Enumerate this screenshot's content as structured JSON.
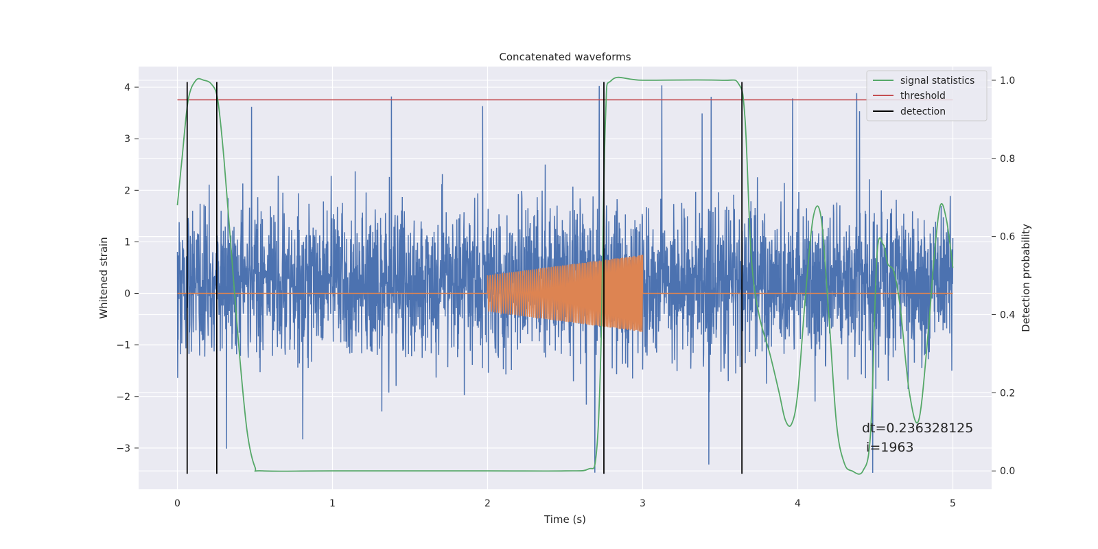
{
  "chart_data": {
    "type": "line",
    "title": "Concatenated waveforms",
    "xlabel": "Time (s)",
    "ylabel": "Whitened strain",
    "y2label": "Detection probability",
    "xlim": [
      -0.25,
      5.25
    ],
    "ylim": [
      -3.8,
      4.4
    ],
    "y2lim": [
      -0.047,
      1.035
    ],
    "xticks": [
      0,
      1,
      2,
      3,
      4,
      5
    ],
    "xtick_labels": [
      "0",
      "1",
      "2",
      "3",
      "4",
      "5"
    ],
    "yticks": [
      -3,
      -2,
      -1,
      0,
      1,
      2,
      3,
      4
    ],
    "ytick_labels": [
      "−3",
      "−2",
      "−1",
      "0",
      "1",
      "2",
      "3",
      "4"
    ],
    "y2ticks": [
      0.0,
      0.2,
      0.4,
      0.6,
      0.8,
      1.0
    ],
    "y2tick_labels": [
      "0.0",
      "0.2",
      "0.4",
      "0.6",
      "0.8",
      "1.0"
    ],
    "grid": true,
    "legend_position": "top-right",
    "series": [
      {
        "name": "",
        "axis": "left",
        "color": "#4c72b0",
        "kind": "noise",
        "x_range": [
          0,
          5
        ],
        "typical_amplitude": [
          -1.5,
          2.3
        ],
        "extremes": [
          -3.5,
          4.1
        ]
      },
      {
        "name": "",
        "axis": "left",
        "color": "#dd8452",
        "kind": "chirp",
        "x": [
          0,
          2,
          2,
          3,
          3,
          5
        ],
        "envelope": [
          0,
          0,
          0.35,
          0.75,
          0,
          0
        ]
      },
      {
        "name": "signal statistics",
        "axis": "right",
        "color": "#55a868",
        "x": [
          0.0,
          0.03,
          0.07,
          0.12,
          0.17,
          0.22,
          0.26,
          0.3,
          0.35,
          0.4,
          0.45,
          0.5,
          0.55,
          1.0,
          2.0,
          2.5,
          2.65,
          2.7,
          2.73,
          2.76,
          2.8,
          3.0,
          3.5,
          3.62,
          3.66,
          3.7,
          3.75,
          3.82,
          3.88,
          3.92,
          3.96,
          4.0,
          4.05,
          4.1,
          4.15,
          4.2,
          4.25,
          4.3,
          4.35,
          4.42,
          4.47,
          4.51,
          4.55,
          4.58,
          4.62,
          4.66,
          4.72,
          4.78,
          4.84,
          4.88,
          4.92,
          4.96,
          5.0
        ],
        "values": [
          0.68,
          0.8,
          0.95,
          1.0,
          1.0,
          0.99,
          0.95,
          0.8,
          0.55,
          0.3,
          0.1,
          0.01,
          0.0,
          0.0,
          0.0,
          0.0,
          0.005,
          0.04,
          0.3,
          0.9,
          1.0,
          1.0,
          1.0,
          0.99,
          0.9,
          0.55,
          0.4,
          0.3,
          0.2,
          0.13,
          0.12,
          0.2,
          0.45,
          0.65,
          0.65,
          0.4,
          0.12,
          0.02,
          0.0,
          0.0,
          0.1,
          0.55,
          0.58,
          0.53,
          0.51,
          0.42,
          0.2,
          0.13,
          0.35,
          0.55,
          0.68,
          0.64,
          0.52
        ]
      },
      {
        "name": "threshold",
        "axis": "right",
        "color": "#c44e52",
        "x": [
          0,
          5
        ],
        "values": [
          0.95,
          0.95
        ]
      },
      {
        "name": "detection",
        "axis": "left",
        "color": "#000000",
        "kind": "vlines",
        "x": [
          0.063,
          0.254,
          2.75,
          3.64
        ],
        "ymin": -3.5,
        "ymax": 4.1
      }
    ],
    "annotation": {
      "line1": "dt=0.236328125",
      "line2": " i=1963",
      "x": 4.5,
      "y": -2.72
    }
  }
}
